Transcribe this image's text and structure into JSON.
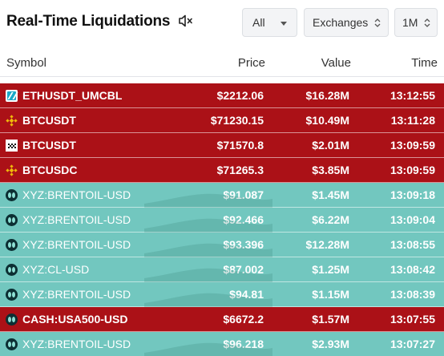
{
  "header": {
    "title": "Real-Time Liquidations",
    "filter_all": "All",
    "filter_exchanges": "Exchanges",
    "timeframe": "1M"
  },
  "columns": {
    "symbol": "Symbol",
    "price": "Price",
    "value": "Value",
    "time": "Time"
  },
  "colors": {
    "long_row": "#ab1117",
    "short_row": "#72c7bf"
  },
  "rows": [
    {
      "icon": "bitget-icon",
      "side": "long",
      "symbol": "ETHUSDT_UMCBL",
      "price": "$2212.06",
      "value": "$16.28M",
      "time": "13:12:55"
    },
    {
      "icon": "binance-icon",
      "side": "long",
      "symbol": "BTCUSDT",
      "price": "$71230.15",
      "value": "$10.49M",
      "time": "13:11:28"
    },
    {
      "icon": "okx-icon",
      "side": "long",
      "symbol": "BTCUSDT",
      "price": "$71570.8",
      "value": "$2.01M",
      "time": "13:09:59"
    },
    {
      "icon": "binance-icon",
      "side": "long",
      "symbol": "BTCUSDC",
      "price": "$71265.3",
      "value": "$3.85M",
      "time": "13:09:59"
    },
    {
      "icon": "hyperliquid-icon",
      "side": "short",
      "symbol": "XYZ:BRENTOIL-USD",
      "price": "$91.087",
      "value": "$1.45M",
      "time": "13:09:18"
    },
    {
      "icon": "hyperliquid-icon",
      "side": "short",
      "symbol": "XYZ:BRENTOIL-USD",
      "price": "$92.466",
      "value": "$6.22M",
      "time": "13:09:04"
    },
    {
      "icon": "hyperliquid-icon",
      "side": "short",
      "symbol": "XYZ:BRENTOIL-USD",
      "price": "$93.396",
      "value": "$12.28M",
      "time": "13:08:55"
    },
    {
      "icon": "hyperliquid-icon",
      "side": "short",
      "symbol": "XYZ:CL-USD",
      "price": "$87.002",
      "value": "$1.25M",
      "time": "13:08:42"
    },
    {
      "icon": "hyperliquid-icon",
      "side": "short",
      "symbol": "XYZ:BRENTOIL-USD",
      "price": "$94.81",
      "value": "$1.15M",
      "time": "13:08:39"
    },
    {
      "icon": "hyperliquid-icon",
      "side": "long",
      "symbol": "CASH:USA500-USD",
      "price": "$6672.2",
      "value": "$1.57M",
      "time": "13:07:55"
    },
    {
      "icon": "hyperliquid-icon",
      "side": "short",
      "symbol": "XYZ:BRENTOIL-USD",
      "price": "$96.218",
      "value": "$2.93M",
      "time": "13:07:27"
    }
  ]
}
